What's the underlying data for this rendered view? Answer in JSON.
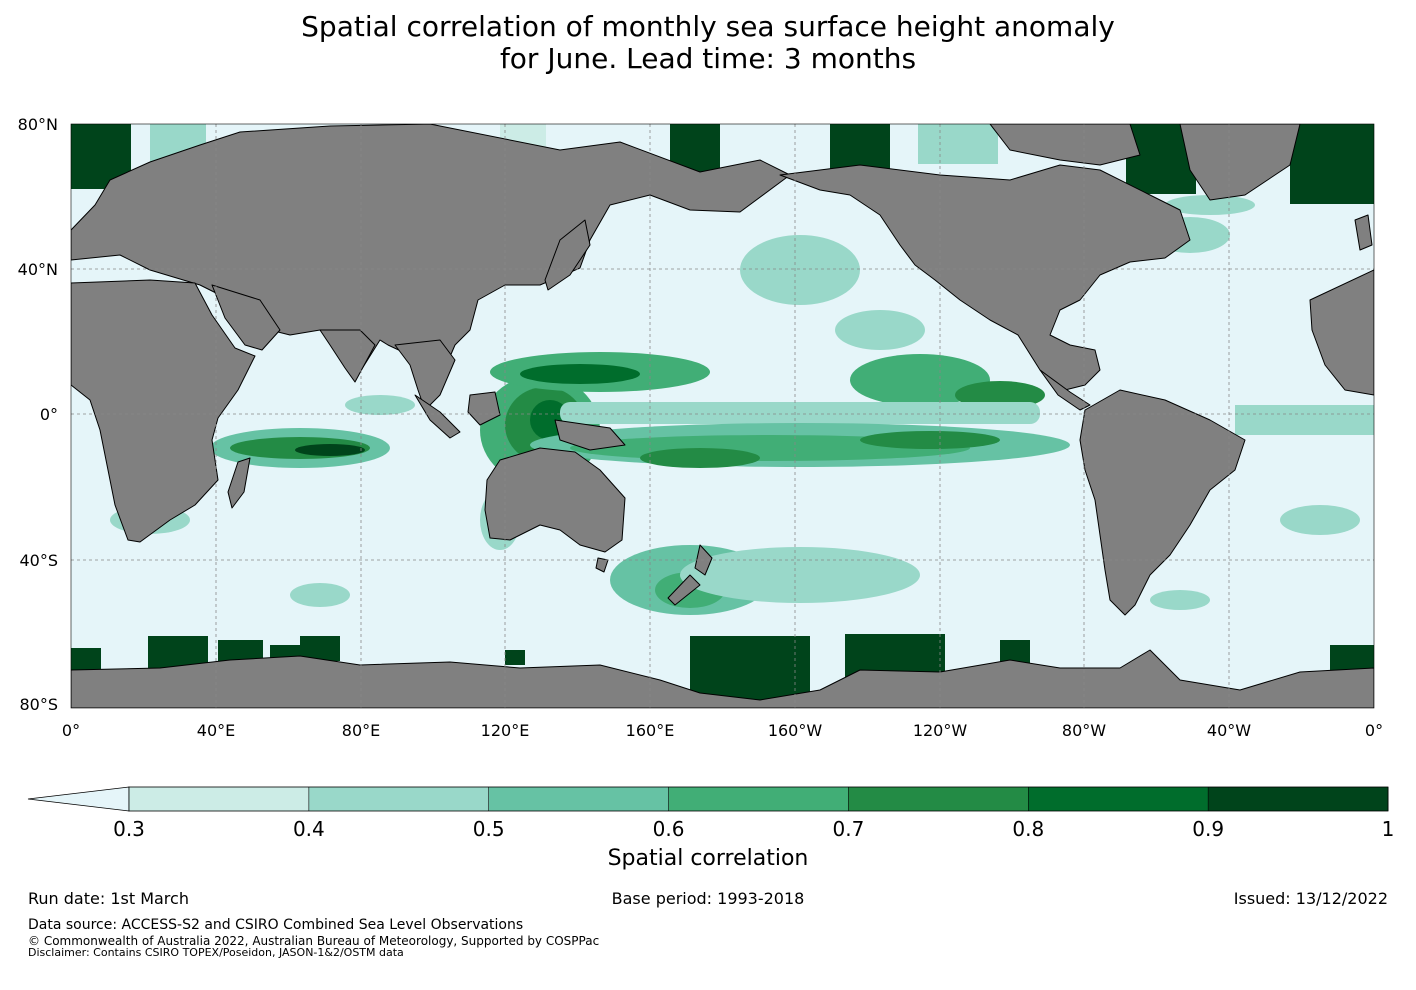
{
  "title": {
    "line1": "Spatial correlation of monthly sea surface height anomaly",
    "line2": "for June. Lead time: 3 months"
  },
  "map": {
    "projection": "Plate Carree, centred on 180°",
    "lat_ticks": [
      "80°N",
      "40°N",
      "0°",
      "40°S",
      "80°S"
    ],
    "lon_ticks": [
      "0°",
      "40°E",
      "80°E",
      "120°E",
      "160°E",
      "160°W",
      "120°W",
      "80°W",
      "40°W",
      "0°"
    ],
    "colors": {
      "land": "#808080",
      "ocean_low": "#e5f5f9",
      "grid": "#888888"
    },
    "regions": [
      {
        "name": "West Pacific warm pool / Maritime Continent",
        "correlation": "0.7-1"
      },
      {
        "name": "Equatorial central Pacific band",
        "correlation": "0.6-0.9"
      },
      {
        "name": "Tropical South Indian Ocean band",
        "correlation": "0.6-0.9"
      },
      {
        "name": "Southern Ocean polar fringe",
        "correlation": "0.9-1"
      },
      {
        "name": "Tasman Sea / New Zealand",
        "correlation": "0.5-0.8"
      }
    ]
  },
  "colorbar": {
    "title": "Spatial correlation",
    "levels": [
      "0.3",
      "0.4",
      "0.5",
      "0.6",
      "0.7",
      "0.8",
      "0.9",
      "1"
    ],
    "colors": [
      "#ccece6",
      "#99d8c9",
      "#66c2a4",
      "#41ae76",
      "#238b45",
      "#006d2c",
      "#00441b"
    ],
    "under_color": "#e5f5f9",
    "extend": "min"
  },
  "footer": {
    "run_date": "Run date: 1st March",
    "base_period": "Base period: 1993-2018",
    "issued": "Issued: 13/12/2022",
    "data_source": "Data source: ACCESS-S2 and CSIRO Combined Sea Level Observations",
    "copyright": "© Commonwealth of Australia 2022, Australian Bureau of Meteorology, Supported by COSPPac",
    "disclaimer": "Disclaimer: Contains CSIRO TOPEX/Poseidon, JASON-1&2/OSTM data"
  }
}
